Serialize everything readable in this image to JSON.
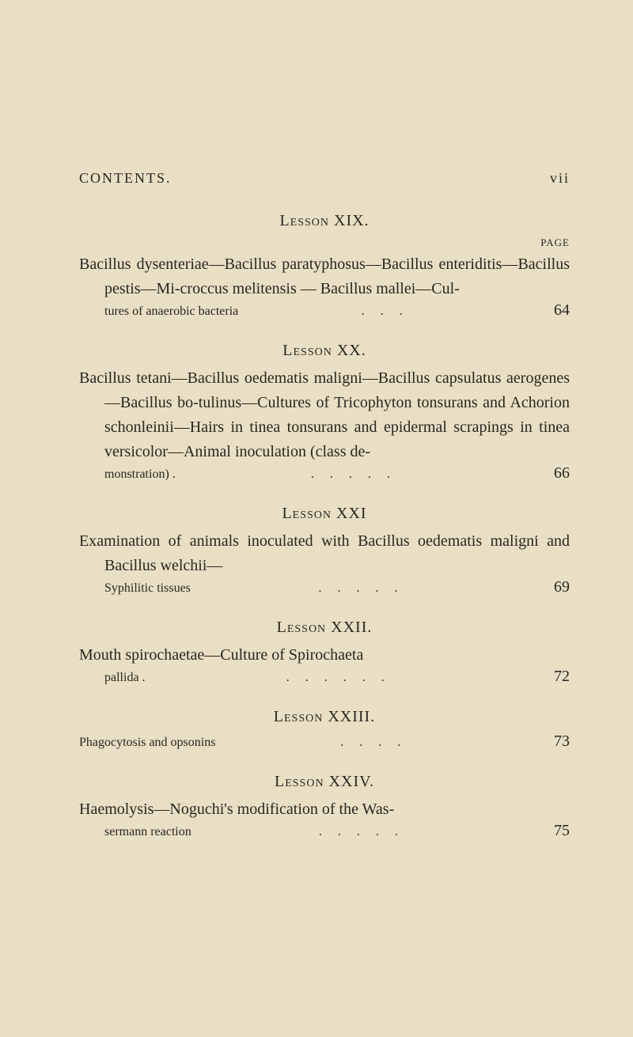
{
  "header": {
    "title": "CONTENTS.",
    "pageNumeral": "vii"
  },
  "pageLabel": "PAGE",
  "colors": {
    "background": "#e8dfc4",
    "text": "#2a2620"
  },
  "typography": {
    "bodyFontSize": 20,
    "headerFontSize": 18,
    "pageLabelFontSize": 13,
    "lineHeight": 1.55,
    "fontFamily": "Georgia, Times New Roman, serif"
  },
  "lessons": [
    {
      "title": "Lesson XIX.",
      "description": "Bacillus dysenteriae—Bacillus paratyphosus—Bacillus enteriditis—Bacillus pestis—Mi-croccus melitensis — Bacillus mallei—Cul-",
      "lastLine": "tures of anaerobic bacteria",
      "page": "64",
      "dotCount": 3
    },
    {
      "title": "Lesson XX.",
      "description": "Bacillus tetani—Bacillus oedematis maligni—Bacillus capsulatus aerogenes—Bacillus bo-tulinus—Cultures of Tricophyton tonsurans and Achorion schonleinii—Hairs in tinea tonsurans and epidermal scrapings in tinea versicolor—Animal inoculation (class de-",
      "lastLine": "monstration) .",
      "page": "66",
      "dotCount": 5
    },
    {
      "title": "Lesson XXI",
      "description": "Examination of animals inoculated with Bacillus oedematis maligni and Bacillus welchii—",
      "lastLine": "Syphilitic tissues",
      "page": "69",
      "dotCount": 5
    },
    {
      "title": "Lesson XXII.",
      "description": "Mouth spirochaetae—Culture of Spirochaeta",
      "lastLine": "pallida .",
      "page": "72",
      "dotCount": 6
    },
    {
      "title": "Lesson XXIII.",
      "description": "",
      "lastLine": "Phagocytosis and opsonins",
      "page": "73",
      "dotCount": 4,
      "noIndent": true
    },
    {
      "title": "Lesson XXIV.",
      "description": "Haemolysis—Noguchi's modification of the Was-",
      "lastLine": "sermann reaction",
      "page": "75",
      "dotCount": 5
    }
  ]
}
